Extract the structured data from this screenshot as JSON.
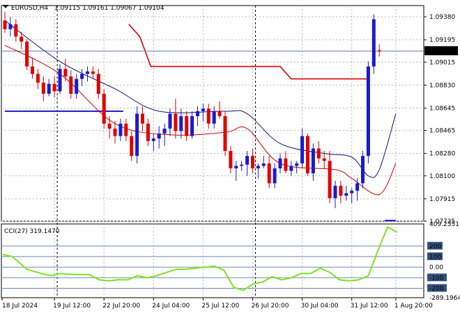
{
  "header": {
    "symbol_timeframe": "EURUSD,H4",
    "ohlc": "1.09115 1.09161 1.09067 1.09104",
    "dropdown_icon": "triangle-down-icon"
  },
  "price_axis": {
    "ticks": [
      "1.09380",
      "1.09195",
      "1.09015",
      "1.08830",
      "1.08645",
      "1.08465",
      "1.08280",
      "1.08100",
      "1.07915",
      "1.07735"
    ],
    "current_price": "1.09104"
  },
  "cci": {
    "label": "CCI(27) 319.1470",
    "ticks": [
      "409.2551",
      "200",
      "100",
      "0.00",
      "-100",
      "-200",
      "-289.1964"
    ]
  },
  "time_axis": {
    "labels": [
      "18 Jul 2024",
      "19 Jul 12:00",
      "22 Jul 20:00",
      "24 Jul 04:00",
      "25 Jul 12:00",
      "26 Jul 20:00",
      "30 Jul 04:00",
      "31 Jul 12:00",
      "1 Aug 20:00"
    ]
  },
  "colors": {
    "bull": "#1a1acc",
    "bear": "#e00000",
    "ma_slow": "#101080",
    "ma_fast": "#cc0000",
    "cci_line": "#80e020",
    "current_price_line": "#6080b0"
  },
  "chart_data": [
    {
      "type": "candlestick",
      "title": "EURUSD,H4",
      "x_labels": [
        "18 Jul 2024",
        "19 Jul 12:00",
        "22 Jul 20:00",
        "24 Jul 04:00",
        "25 Jul 12:00",
        "26 Jul 20:00",
        "30 Jul 04:00",
        "31 Jul 12:00",
        "1 Aug 20:00"
      ],
      "ylim": [
        1.07735,
        1.0947
      ],
      "grid": true,
      "candles": [
        [
          1.0935,
          1.0942,
          1.0925,
          1.0928
        ],
        [
          1.0928,
          1.0938,
          1.0922,
          1.0932
        ],
        [
          1.0932,
          1.0936,
          1.0918,
          1.0922
        ],
        [
          1.0922,
          1.0926,
          1.0912,
          1.0918
        ],
        [
          1.0918,
          1.092,
          1.0895,
          1.0898
        ],
        [
          1.0898,
          1.0905,
          1.0888,
          1.0892
        ],
        [
          1.0892,
          1.0896,
          1.088,
          1.0885
        ],
        [
          1.0885,
          1.089,
          1.087,
          1.0876
        ],
        [
          1.0876,
          1.0888,
          1.0874,
          1.0884
        ],
        [
          1.0884,
          1.089,
          1.0873,
          1.0878
        ],
        [
          1.0878,
          1.09,
          1.0876,
          1.0896
        ],
        [
          1.0896,
          1.0904,
          1.0886,
          1.089
        ],
        [
          1.089,
          1.0895,
          1.0872,
          1.0876
        ],
        [
          1.0876,
          1.0892,
          1.0872,
          1.0888
        ],
        [
          1.0888,
          1.0896,
          1.0882,
          1.0892
        ],
        [
          1.0892,
          1.0898,
          1.0886,
          1.0894
        ],
        [
          1.0894,
          1.0898,
          1.0888,
          1.0892
        ],
        [
          1.0892,
          1.0896,
          1.0872,
          1.0876
        ],
        [
          1.0876,
          1.088,
          1.0848,
          1.0852
        ],
        [
          1.0852,
          1.0858,
          1.084,
          1.0848
        ],
        [
          1.0848,
          1.0854,
          1.0836,
          1.0842
        ],
        [
          1.0842,
          1.0856,
          1.0838,
          1.0852
        ],
        [
          1.0852,
          1.0856,
          1.0838,
          1.0842
        ],
        [
          1.0842,
          1.0846,
          1.0822,
          1.0826
        ],
        [
          1.0826,
          1.0866,
          1.082,
          1.086
        ],
        [
          1.086,
          1.0866,
          1.0846,
          1.0852
        ],
        [
          1.0852,
          1.0856,
          1.0834,
          1.0838
        ],
        [
          1.0838,
          1.0844,
          1.083,
          1.084
        ],
        [
          1.084,
          1.085,
          1.0832,
          1.0844
        ],
        [
          1.0844,
          1.0852,
          1.0834,
          1.0848
        ],
        [
          1.0848,
          1.0864,
          1.0842,
          1.086
        ],
        [
          1.086,
          1.0872,
          1.084,
          1.0846
        ],
        [
          1.0846,
          1.0864,
          1.084,
          1.0858
        ],
        [
          1.0858,
          1.0862,
          1.0838,
          1.0842
        ],
        [
          1.0842,
          1.0862,
          1.084,
          1.0858
        ],
        [
          1.0858,
          1.0866,
          1.085,
          1.0862
        ],
        [
          1.0862,
          1.0868,
          1.0854,
          1.0864
        ],
        [
          1.0864,
          1.0868,
          1.0848,
          1.0852
        ],
        [
          1.0852,
          1.0866,
          1.0848,
          1.0862
        ],
        [
          1.0862,
          1.087,
          1.0856,
          1.0858
        ],
        [
          1.0858,
          1.0862,
          1.0826,
          1.083
        ],
        [
          1.083,
          1.0834,
          1.0812,
          1.0816
        ],
        [
          1.0816,
          1.0822,
          1.0806,
          1.0818
        ],
        [
          1.0818,
          1.0822,
          1.0814,
          1.0819
        ],
        [
          1.0819,
          1.083,
          1.081,
          1.0826
        ],
        [
          1.0826,
          1.0832,
          1.0812,
          1.0816
        ],
        [
          1.0816,
          1.082,
          1.0808,
          1.0818
        ],
        [
          1.0818,
          1.0826,
          1.0816,
          1.082
        ],
        [
          1.082,
          1.0826,
          1.08,
          1.0804
        ],
        [
          1.0804,
          1.082,
          1.08,
          1.0816
        ],
        [
          1.0816,
          1.0828,
          1.0812,
          1.0824
        ],
        [
          1.0824,
          1.083,
          1.0812,
          1.0814
        ],
        [
          1.0814,
          1.0822,
          1.081,
          1.0818
        ],
        [
          1.0818,
          1.0822,
          1.0812,
          1.082
        ],
        [
          1.082,
          1.0848,
          1.0816,
          1.0842
        ],
        [
          1.0842,
          1.0844,
          1.081,
          1.0812
        ],
        [
          1.0812,
          1.0836,
          1.0806,
          1.0832
        ],
        [
          1.0832,
          1.0838,
          1.082,
          1.0824
        ],
        [
          1.0824,
          1.083,
          1.0816,
          1.0822
        ],
        [
          1.0822,
          1.083,
          1.0788,
          1.0792
        ],
        [
          1.0792,
          1.0806,
          1.0784,
          1.0802
        ],
        [
          1.0802,
          1.0806,
          1.0788,
          1.0794
        ],
        [
          1.0794,
          1.0802,
          1.079,
          1.0796
        ],
        [
          1.0796,
          1.08,
          1.0788,
          1.0798
        ],
        [
          1.0798,
          1.0808,
          1.079,
          1.0804
        ],
        [
          1.0804,
          1.083,
          1.08,
          1.0826
        ],
        [
          1.0826,
          1.0902,
          1.082,
          1.0898
        ],
        [
          1.0898,
          1.094,
          1.0892,
          1.0936
        ],
        [
          1.0911,
          1.0916,
          1.0906,
          1.091
        ]
      ],
      "ma_fast": [
        [
          0,
          1.0915
        ],
        [
          10,
          1.0892
        ],
        [
          20,
          1.0852
        ],
        [
          30,
          1.0843
        ],
        [
          40,
          1.0845
        ],
        [
          44,
          1.0848
        ],
        [
          50,
          1.082
        ],
        [
          60,
          1.0815
        ],
        [
          63,
          1.0808
        ],
        [
          68,
          1.0795
        ],
        [
          71,
          1.082
        ]
      ],
      "ma_slow": [
        [
          0,
          1.0935
        ],
        [
          10,
          1.0902
        ],
        [
          20,
          1.088
        ],
        [
          28,
          1.0862
        ],
        [
          40,
          1.0862
        ],
        [
          44,
          1.086
        ],
        [
          50,
          1.0836
        ],
        [
          58,
          1.0828
        ],
        [
          63,
          1.0825
        ],
        [
          66,
          1.081
        ],
        [
          68,
          1.0815
        ],
        [
          71,
          1.086
        ]
      ],
      "red_level": [
        [
          22.5,
          1.0932
        ],
        [
          24.5,
          1.0922
        ],
        [
          26.5,
          1.0898
        ],
        [
          50,
          1.0898
        ],
        [
          52,
          1.0888
        ],
        [
          66,
          1.0888
        ]
      ],
      "blue_level": [
        [
          0,
          1.0862
        ],
        [
          21.5,
          1.0862
        ]
      ]
    },
    {
      "type": "line",
      "title": "CCI(27) 319.1470",
      "ylim": [
        -289.1964,
        409.2551
      ],
      "levels": [
        200,
        100,
        0,
        -100,
        -200
      ],
      "series": [
        {
          "points": [
            [
              0,
              120
            ],
            [
              2,
              100
            ],
            [
              5,
              -20
            ],
            [
              8,
              -60
            ],
            [
              10,
              -80
            ],
            [
              12,
              -60
            ],
            [
              15,
              -70
            ],
            [
              18,
              -70
            ],
            [
              20,
              -120
            ],
            [
              22,
              -130
            ],
            [
              24,
              -120
            ],
            [
              26,
              -120
            ],
            [
              28,
              -80
            ],
            [
              30,
              -100
            ],
            [
              32,
              -80
            ],
            [
              34,
              -50
            ],
            [
              36,
              -20
            ],
            [
              38,
              -20
            ],
            [
              40,
              -10
            ],
            [
              42,
              0
            ],
            [
              44,
              10
            ],
            [
              46,
              -30
            ],
            [
              48,
              -190
            ],
            [
              50,
              -220
            ],
            [
              52,
              -160
            ],
            [
              54,
              -140
            ],
            [
              56,
              -90
            ],
            [
              58,
              -120
            ],
            [
              60,
              -100
            ],
            [
              62,
              -60
            ],
            [
              64,
              -60
            ],
            [
              66,
              -10
            ],
            [
              68,
              -50
            ],
            [
              70,
              -120
            ],
            [
              72,
              -130
            ],
            [
              74,
              -120
            ],
            [
              76,
              -80
            ],
            [
              78,
              160
            ],
            [
              80,
              380
            ],
            [
              82,
              330
            ]
          ]
        }
      ]
    }
  ]
}
